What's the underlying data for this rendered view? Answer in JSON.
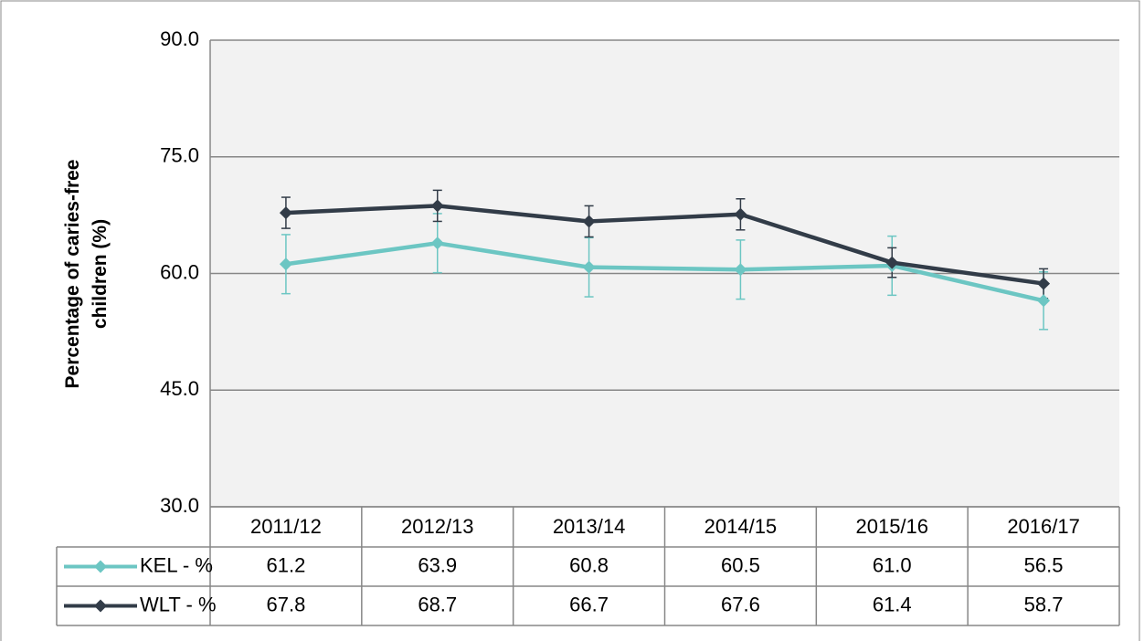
{
  "chart_data": {
    "type": "line",
    "y_label": "Percentage of caries-free children (%)",
    "categories": [
      "2011/12",
      "2012/13",
      "2013/14",
      "2014/15",
      "2015/16",
      "2016/17"
    ],
    "series": [
      {
        "name": "KEL - %",
        "color": "#6cc6c3",
        "values": [
          61.2,
          63.9,
          60.8,
          60.5,
          61.0,
          56.5
        ],
        "value_labels": [
          "61.2",
          "63.9",
          "60.8",
          "60.5",
          "61.0",
          "56.5"
        ],
        "errors": [
          3.8,
          3.8,
          3.8,
          3.8,
          3.8,
          3.7
        ]
      },
      {
        "name": "WLT - %",
        "color": "#323c48",
        "values": [
          67.8,
          68.7,
          66.7,
          67.6,
          61.4,
          58.7
        ],
        "value_labels": [
          "67.8",
          "68.7",
          "66.7",
          "67.6",
          "61.4",
          "58.7"
        ],
        "errors": [
          2.0,
          2.0,
          2.0,
          2.0,
          1.9,
          1.9
        ]
      }
    ],
    "ylim": [
      30,
      90
    ],
    "yticks": [
      {
        "value": 30,
        "label": "30.0"
      },
      {
        "value": 45,
        "label": "45.0"
      },
      {
        "value": 60,
        "label": "60.0"
      },
      {
        "value": 75,
        "label": "75.0"
      },
      {
        "value": 90,
        "label": "90.0"
      }
    ],
    "grid": true
  }
}
